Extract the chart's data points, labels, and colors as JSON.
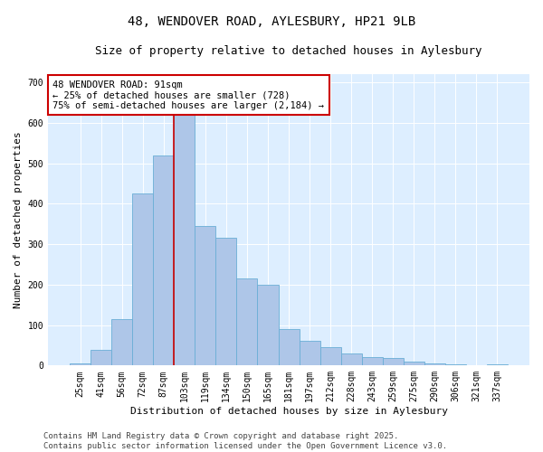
{
  "title_line1": "48, WENDOVER ROAD, AYLESBURY, HP21 9LB",
  "title_line2": "Size of property relative to detached houses in Aylesbury",
  "xlabel": "Distribution of detached houses by size in Aylesbury",
  "ylabel": "Number of detached properties",
  "categories": [
    "25sqm",
    "41sqm",
    "56sqm",
    "72sqm",
    "87sqm",
    "103sqm",
    "119sqm",
    "134sqm",
    "150sqm",
    "165sqm",
    "181sqm",
    "197sqm",
    "212sqm",
    "228sqm",
    "243sqm",
    "259sqm",
    "275sqm",
    "290sqm",
    "306sqm",
    "321sqm",
    "337sqm"
  ],
  "values": [
    5,
    38,
    115,
    425,
    520,
    630,
    345,
    315,
    215,
    200,
    90,
    60,
    45,
    30,
    20,
    18,
    10,
    5,
    2,
    0,
    2
  ],
  "bar_color": "#aec6e8",
  "bar_edge_color": "#6aaed6",
  "vline_color": "#cc0000",
  "vline_position": 4.5,
  "annotation_box_text": "48 WENDOVER ROAD: 91sqm\n← 25% of detached houses are smaller (728)\n75% of semi-detached houses are larger (2,184) →",
  "annotation_box_color": "#cc0000",
  "background_color": "#ddeeff",
  "plot_bg_color": "#ddeeff",
  "ylim": [
    0,
    720
  ],
  "yticks": [
    0,
    100,
    200,
    300,
    400,
    500,
    600,
    700
  ],
  "footer_text": "Contains HM Land Registry data © Crown copyright and database right 2025.\nContains public sector information licensed under the Open Government Licence v3.0.",
  "title_fontsize": 10,
  "subtitle_fontsize": 9,
  "axis_label_fontsize": 8,
  "tick_fontsize": 7,
  "annotation_fontsize": 7.5,
  "footer_fontsize": 6.5
}
